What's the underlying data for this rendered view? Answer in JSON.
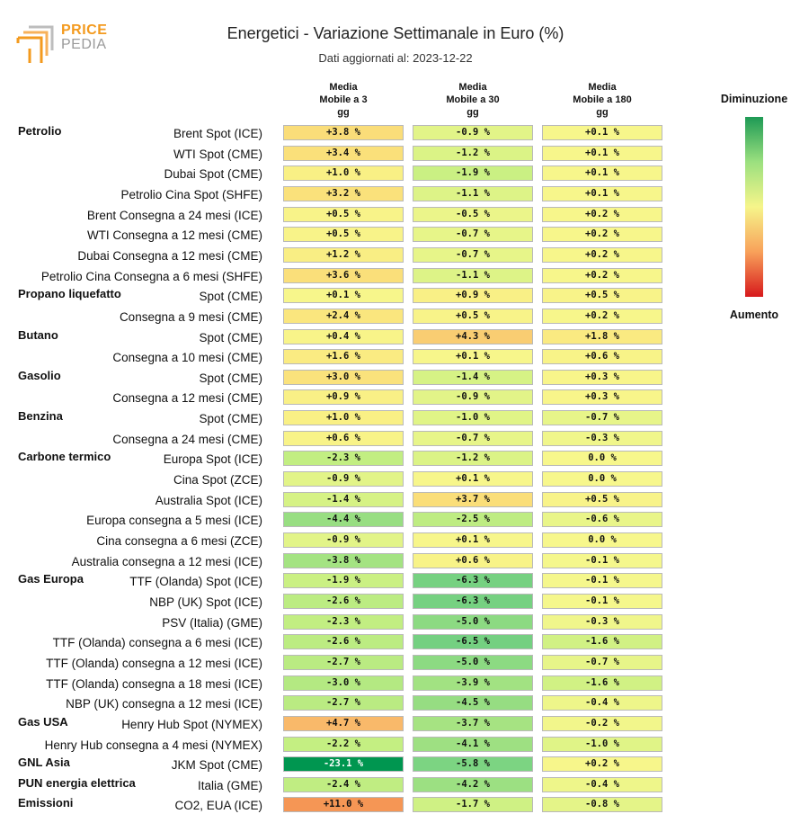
{
  "logo": {
    "line1": "PRICE",
    "line2": "PEDIA",
    "color_orange": "#f39a1e",
    "color_grey": "#9a9a9a"
  },
  "header": {
    "title": "Energetici - Variazione Settimanale in Euro (%)",
    "subtitle": "Dati aggiornati al: 2023-12-22"
  },
  "legend": {
    "top": "Diminuzione",
    "bottom": "Aumento"
  },
  "chart_data": {
    "type": "table",
    "title": "Energetici - Variazione Settimanale in Euro (%)",
    "columns": [
      {
        "label": "Media\nMobile a 3\ngg"
      },
      {
        "label": "Media\nMobile a 30\ngg"
      },
      {
        "label": "Media\nMobile a 180\ngg"
      }
    ],
    "rows": [
      {
        "group": "Petrolio",
        "label": "Brent Spot (ICE)",
        "values": [
          "+3.8 %",
          "-0.9 %",
          "+0.1 %"
        ]
      },
      {
        "group": "",
        "label": "WTI Spot (CME)",
        "values": [
          "+3.4 %",
          "-1.2 %",
          "+0.1 %"
        ]
      },
      {
        "group": "",
        "label": "Dubai Spot (CME)",
        "values": [
          "+1.0 %",
          "-1.9 %",
          "+0.1 %"
        ]
      },
      {
        "group": "",
        "label": "Petrolio Cina Spot (SHFE)",
        "values": [
          "+3.2 %",
          "-1.1 %",
          "+0.1 %"
        ]
      },
      {
        "group": "",
        "label": "Brent Consegna a 24 mesi (ICE)",
        "values": [
          "+0.5 %",
          "-0.5 %",
          "+0.2 %"
        ]
      },
      {
        "group": "",
        "label": "WTI Consegna a 12 mesi (CME)",
        "values": [
          "+0.5 %",
          "-0.7 %",
          "+0.2 %"
        ]
      },
      {
        "group": "",
        "label": "Dubai Consegna a 12 mesi (CME)",
        "values": [
          "+1.2 %",
          "-0.7 %",
          "+0.2 %"
        ]
      },
      {
        "group": "",
        "label": "Petrolio Cina Consegna a 6 mesi (SHFE)",
        "values": [
          "+3.6 %",
          "-1.1 %",
          "+0.2 %"
        ]
      },
      {
        "group": "Propano liquefatto",
        "label": "Spot (CME)",
        "values": [
          "+0.1 %",
          "+0.9 %",
          "+0.5 %"
        ]
      },
      {
        "group": "",
        "label": "Consegna a 9 mesi (CME)",
        "values": [
          "+2.4 %",
          "+0.5 %",
          "+0.2 %"
        ]
      },
      {
        "group": "Butano",
        "label": "Spot (CME)",
        "values": [
          "+0.4 %",
          "+4.3 %",
          "+1.8 %"
        ]
      },
      {
        "group": "",
        "label": "Consegna a 10 mesi (CME)",
        "values": [
          "+1.6 %",
          "+0.1 %",
          "+0.6 %"
        ]
      },
      {
        "group": "Gasolio",
        "label": "Spot (CME)",
        "values": [
          "+3.0 %",
          "-1.4 %",
          "+0.3 %"
        ]
      },
      {
        "group": "",
        "label": "Consegna a 12 mesi (CME)",
        "values": [
          "+0.9 %",
          "-0.9 %",
          "+0.3 %"
        ]
      },
      {
        "group": "Benzina",
        "label": "Spot (CME)",
        "values": [
          "+1.0 %",
          "-1.0 %",
          "-0.7 %"
        ]
      },
      {
        "group": "",
        "label": "Consegna a 24 mesi (CME)",
        "values": [
          "+0.6 %",
          "-0.7 %",
          "-0.3 %"
        ]
      },
      {
        "group": "Carbone termico",
        "label": "Europa Spot (ICE)",
        "values": [
          "-2.3 %",
          "-1.2 %",
          "0.0 %"
        ]
      },
      {
        "group": "",
        "label": "Cina Spot (ZCE)",
        "values": [
          "-0.9 %",
          "+0.1 %",
          "0.0 %"
        ]
      },
      {
        "group": "",
        "label": "Australia Spot (ICE)",
        "values": [
          "-1.4 %",
          "+3.7 %",
          "+0.5 %"
        ]
      },
      {
        "group": "",
        "label": "Europa consegna a 5 mesi (ICE)",
        "values": [
          "-4.4 %",
          "-2.5 %",
          "-0.6 %"
        ]
      },
      {
        "group": "",
        "label": "Cina consegna a 6 mesi (ZCE)",
        "values": [
          "-0.9 %",
          "+0.1 %",
          "0.0 %"
        ]
      },
      {
        "group": "",
        "label": "Australia consegna a 12 mesi (ICE)",
        "values": [
          "-3.8 %",
          "+0.6 %",
          "-0.1 %"
        ]
      },
      {
        "group": "Gas Europa",
        "label": "TTF (Olanda) Spot (ICE)",
        "values": [
          "-1.9 %",
          "-6.3 %",
          "-0.1 %"
        ]
      },
      {
        "group": "",
        "label": "NBP (UK) Spot (ICE)",
        "values": [
          "-2.6 %",
          "-6.3 %",
          "-0.1 %"
        ]
      },
      {
        "group": "",
        "label": "PSV (Italia) (GME)",
        "values": [
          "-2.3 %",
          "-5.0 %",
          "-0.3 %"
        ]
      },
      {
        "group": "",
        "label": "TTF (Olanda) consegna a 6 mesi (ICE)",
        "values": [
          "-2.6 %",
          "-6.5 %",
          "-1.6 %"
        ]
      },
      {
        "group": "",
        "label": "TTF (Olanda) consegna a 12 mesi (ICE)",
        "values": [
          "-2.7 %",
          "-5.0 %",
          "-0.7 %"
        ]
      },
      {
        "group": "",
        "label": "TTF (Olanda) consegna a 18 mesi (ICE)",
        "values": [
          "-3.0 %",
          "-3.9 %",
          "-1.6 %"
        ]
      },
      {
        "group": "",
        "label": "NBP (UK) consegna a 12 mesi (ICE)",
        "values": [
          "-2.7 %",
          "-4.5 %",
          "-0.4 %"
        ]
      },
      {
        "group": "Gas USA",
        "label": "Henry Hub Spot (NYMEX)",
        "values": [
          "+4.7 %",
          "-3.7 %",
          "-0.2 %"
        ]
      },
      {
        "group": "",
        "label": "Henry Hub consegna a 4 mesi (NYMEX)",
        "values": [
          "-2.2 %",
          "-4.1 %",
          "-1.0 %"
        ]
      },
      {
        "group": "GNL Asia",
        "label": "JKM Spot (CME)",
        "values": [
          "-23.1 %",
          "-5.8 %",
          "+0.2 %"
        ]
      },
      {
        "group": "PUN energia elettrica",
        "label": "Italia (GME)",
        "values": [
          "-2.4 %",
          "-4.2 %",
          "-0.4 %"
        ]
      },
      {
        "group": "Emissioni",
        "label": "CO2, EUA (ICE)",
        "values": [
          "+11.0 %",
          "-1.7 %",
          "-0.8 %"
        ]
      }
    ]
  }
}
